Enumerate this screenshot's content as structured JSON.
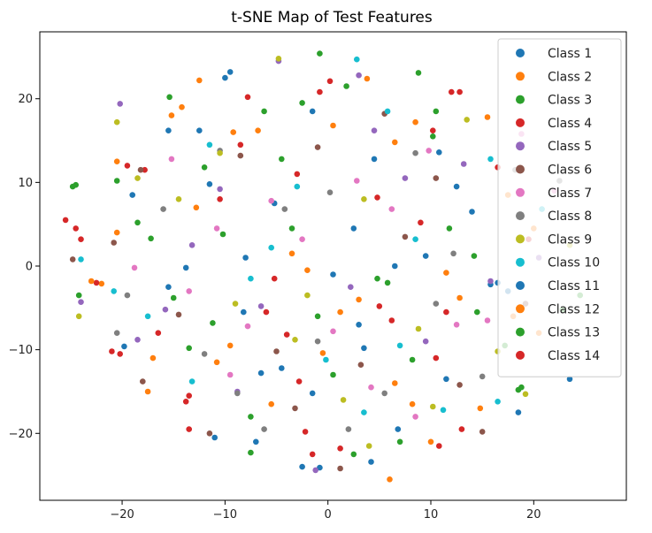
{
  "chart_data": {
    "type": "scatter",
    "title": "t-SNE Map of Test Features",
    "xlabel": "",
    "ylabel": "",
    "xlim": [
      -28,
      29
    ],
    "ylim": [
      -28,
      28
    ],
    "xticks": [
      -20,
      -10,
      0,
      10,
      20
    ],
    "yticks": [
      -20,
      -10,
      0,
      10,
      20
    ],
    "xtick_labels": [
      "−20",
      "−10",
      "0",
      "10",
      "20"
    ],
    "ytick_labels": [
      "−20",
      "−10",
      "0",
      "10",
      "20"
    ],
    "grid": false,
    "legend_position": "top-right",
    "series": [
      {
        "name": "Class 1",
        "color": "#1f77b4",
        "points": [
          [
            -9.5,
            23.2
          ],
          [
            -15.5,
            16.2
          ],
          [
            -11.5,
            9.8
          ],
          [
            -5.2,
            7.5
          ],
          [
            2.5,
            4.5
          ],
          [
            9.5,
            1.2
          ],
          [
            15.8,
            -2.2
          ],
          [
            -8.2,
            -5.5
          ],
          [
            3.5,
            -9.8
          ],
          [
            -1.5,
            -15.2
          ],
          [
            6.8,
            -19.5
          ],
          [
            -0.8,
            -24.1
          ],
          [
            18.5,
            -17.5
          ],
          [
            -13.8,
            -0.2
          ],
          [
            12.5,
            9.5
          ],
          [
            4.2,
            -23.4
          ],
          [
            -19.8,
            -9.6
          ],
          [
            23.5,
            -13.5
          ],
          [
            10.8,
            13.6
          ],
          [
            -4.5,
            -12.2
          ]
        ]
      },
      {
        "name": "Class 2",
        "color": "#ff7f0e",
        "points": [
          [
            -14.2,
            19.0
          ],
          [
            -20.5,
            12.5
          ],
          [
            6.5,
            14.8
          ],
          [
            -3.5,
            1.5
          ],
          [
            12.8,
            -3.8
          ],
          [
            -10.8,
            -11.5
          ],
          [
            1.2,
            -5.5
          ],
          [
            17.5,
            8.5
          ],
          [
            -6.8,
            16.2
          ],
          [
            8.2,
            -16.5
          ],
          [
            6.0,
            -25.5
          ],
          [
            -22.0,
            -2.1
          ],
          [
            15.5,
            17.8
          ],
          [
            -0.5,
            -10.4
          ],
          [
            20.5,
            -8.0
          ],
          [
            -12.5,
            22.2
          ],
          [
            3.8,
            22.4
          ],
          [
            -17.5,
            -15.0
          ]
        ]
      },
      {
        "name": "Class 3",
        "color": "#2ca02c",
        "points": [
          [
            -15.4,
            20.2
          ],
          [
            -0.8,
            25.4
          ],
          [
            8.8,
            23.1
          ],
          [
            -24.5,
            9.7
          ],
          [
            -20.5,
            10.2
          ],
          [
            10.5,
            18.5
          ],
          [
            -4.5,
            12.8
          ],
          [
            5.8,
            -2.0
          ],
          [
            -10.2,
            3.8
          ],
          [
            14.5,
            -5.5
          ],
          [
            0.5,
            -13.0
          ],
          [
            -7.5,
            -22.3
          ],
          [
            18.5,
            -14.8
          ],
          [
            -24.2,
            -3.5
          ],
          [
            22.8,
            -5.2
          ],
          [
            -13.5,
            -9.8
          ],
          [
            7.0,
            -21.0
          ],
          [
            -2.5,
            19.5
          ],
          [
            11.8,
            4.5
          ],
          [
            -17.2,
            3.3
          ]
        ]
      },
      {
        "name": "Class 4",
        "color": "#d62728",
        "points": [
          [
            -25.5,
            5.5
          ],
          [
            -24.0,
            3.2
          ],
          [
            -22.5,
            -2.0
          ],
          [
            -21.0,
            -10.2
          ],
          [
            12.8,
            20.8
          ],
          [
            0.2,
            22.1
          ],
          [
            -8.5,
            14.5
          ],
          [
            4.8,
            8.2
          ],
          [
            -5.2,
            -1.5
          ],
          [
            10.5,
            -11.0
          ],
          [
            -13.8,
            -16.2
          ],
          [
            1.2,
            -21.8
          ],
          [
            10.8,
            -21.5
          ],
          [
            -2.2,
            -19.8
          ],
          [
            19.5,
            3.2
          ],
          [
            -17.8,
            11.5
          ],
          [
            6.2,
            -6.5
          ],
          [
            -13.5,
            -19.5
          ],
          [
            16.5,
            11.8
          ],
          [
            -4.0,
            -8.2
          ]
        ]
      },
      {
        "name": "Class 5",
        "color": "#9467bd",
        "points": [
          [
            -20.2,
            19.4
          ],
          [
            -13.2,
            2.5
          ],
          [
            -4.8,
            24.5
          ],
          [
            3.0,
            22.8
          ],
          [
            7.5,
            10.5
          ],
          [
            13.2,
            12.2
          ],
          [
            -6.5,
            -4.8
          ],
          [
            2.2,
            -2.5
          ],
          [
            -15.8,
            -5.2
          ],
          [
            9.5,
            -9.0
          ],
          [
            -1.2,
            -24.4
          ],
          [
            -8.8,
            -15.0
          ],
          [
            15.8,
            -1.8
          ],
          [
            -18.5,
            -8.8
          ],
          [
            4.5,
            16.2
          ],
          [
            -10.5,
            9.2
          ],
          [
            20.5,
            1.0
          ],
          [
            -24.0,
            -4.3
          ]
        ]
      },
      {
        "name": "Class 6",
        "color": "#8c564b",
        "points": [
          [
            -18.2,
            11.5
          ],
          [
            -8.5,
            13.2
          ],
          [
            -1.0,
            14.2
          ],
          [
            5.5,
            18.2
          ],
          [
            10.5,
            10.5
          ],
          [
            -14.5,
            -5.8
          ],
          [
            -5.0,
            -10.2
          ],
          [
            3.2,
            -11.8
          ],
          [
            12.8,
            -14.2
          ],
          [
            -18.0,
            -13.8
          ],
          [
            1.2,
            -24.2
          ],
          [
            15.0,
            -19.8
          ],
          [
            -24.8,
            0.8
          ],
          [
            19.2,
            -4.5
          ],
          [
            -11.5,
            -20.0
          ],
          [
            7.5,
            3.5
          ],
          [
            -3.2,
            -17.0
          ],
          [
            -20.8,
            2.8
          ]
        ]
      },
      {
        "name": "Class 7",
        "color": "#e377c2",
        "points": [
          [
            -18.8,
            -0.2
          ],
          [
            -10.8,
            4.5
          ],
          [
            -5.5,
            7.8
          ],
          [
            2.8,
            10.2
          ],
          [
            6.2,
            6.8
          ],
          [
            12.5,
            -7.0
          ],
          [
            -13.5,
            -3.0
          ],
          [
            -7.8,
            -7.2
          ],
          [
            0.5,
            -7.8
          ],
          [
            4.2,
            -14.5
          ],
          [
            8.5,
            -18.0
          ],
          [
            15.5,
            -6.5
          ],
          [
            18.8,
            15.8
          ],
          [
            -2.5,
            3.2
          ],
          [
            9.8,
            13.8
          ],
          [
            -9.5,
            -13.0
          ],
          [
            22.0,
            9.0
          ],
          [
            -15.2,
            12.8
          ]
        ]
      },
      {
        "name": "Class 8",
        "color": "#7f7f7f",
        "points": [
          [
            -19.5,
            -3.5
          ],
          [
            -20.5,
            -8.0
          ],
          [
            -4.2,
            6.8
          ],
          [
            8.5,
            13.5
          ],
          [
            12.2,
            1.5
          ],
          [
            -8.8,
            -15.2
          ],
          [
            2.0,
            -19.5
          ],
          [
            -12.0,
            -10.5
          ],
          [
            -1.0,
            -9.0
          ],
          [
            18.2,
            11.5
          ],
          [
            5.5,
            -15.2
          ],
          [
            15.0,
            -13.2
          ],
          [
            22.5,
            10.2
          ],
          [
            -6.2,
            -19.5
          ],
          [
            -16.0,
            6.8
          ],
          [
            0.2,
            8.8
          ],
          [
            10.5,
            -4.5
          ],
          [
            -10.5,
            13.8
          ]
        ]
      },
      {
        "name": "Class 9",
        "color": "#bcbd22",
        "points": [
          [
            -20.5,
            17.2
          ],
          [
            -18.5,
            10.5
          ],
          [
            -10.5,
            13.5
          ],
          [
            -4.8,
            24.8
          ],
          [
            3.5,
            8.0
          ],
          [
            8.8,
            -7.5
          ],
          [
            13.5,
            17.5
          ],
          [
            16.5,
            -10.2
          ],
          [
            -14.5,
            8.0
          ],
          [
            -3.2,
            -8.8
          ],
          [
            4.0,
            -21.5
          ],
          [
            -2.0,
            -3.5
          ],
          [
            19.2,
            -15.3
          ],
          [
            -24.2,
            -6.0
          ],
          [
            10.2,
            -16.8
          ],
          [
            -9.0,
            -4.5
          ],
          [
            1.5,
            -16.0
          ],
          [
            23.5,
            2.5
          ]
        ]
      },
      {
        "name": "Class 10",
        "color": "#17becf",
        "points": [
          [
            -11.5,
            14.5
          ],
          [
            -17.5,
            -6.0
          ],
          [
            -7.5,
            -1.5
          ],
          [
            -5.5,
            2.2
          ],
          [
            2.8,
            24.7
          ],
          [
            5.8,
            18.5
          ],
          [
            8.5,
            3.2
          ],
          [
            15.8,
            12.8
          ],
          [
            -13.2,
            -13.8
          ],
          [
            -0.2,
            -11.2
          ],
          [
            3.5,
            -17.5
          ],
          [
            11.2,
            -17.2
          ],
          [
            16.5,
            -16.2
          ],
          [
            -20.8,
            -3.0
          ],
          [
            -24.0,
            0.8
          ],
          [
            20.8,
            6.8
          ],
          [
            -3.0,
            9.5
          ],
          [
            7.0,
            -9.5
          ]
        ]
      },
      {
        "name": "Class 11",
        "color": "#1f77b4",
        "points": [
          [
            -10.0,
            22.5
          ],
          [
            -12.5,
            16.2
          ],
          [
            -19.0,
            8.5
          ],
          [
            -1.5,
            18.5
          ],
          [
            4.5,
            12.8
          ],
          [
            -8.0,
            1.0
          ],
          [
            0.5,
            -1.0
          ],
          [
            6.5,
            0.0
          ],
          [
            14.0,
            6.5
          ],
          [
            16.5,
            -2.0
          ],
          [
            -15.5,
            -2.5
          ],
          [
            -6.5,
            -12.8
          ],
          [
            3.0,
            -7.0
          ],
          [
            -11.0,
            -20.5
          ],
          [
            -2.5,
            -24.0
          ],
          [
            11.5,
            -13.5
          ],
          [
            17.5,
            -3.0
          ],
          [
            -7.0,
            -21.0
          ]
        ]
      },
      {
        "name": "Class 12",
        "color": "#ff7f0e",
        "points": [
          [
            -15.2,
            18.0
          ],
          [
            -9.2,
            16.0
          ],
          [
            0.5,
            16.8
          ],
          [
            8.5,
            17.2
          ],
          [
            -20.5,
            4.0
          ],
          [
            -12.8,
            7.0
          ],
          [
            -2.0,
            -0.5
          ],
          [
            11.5,
            -0.8
          ],
          [
            -17.0,
            -11.0
          ],
          [
            -5.5,
            -16.5
          ],
          [
            6.5,
            -14.0
          ],
          [
            -23.0,
            -1.8
          ],
          [
            14.8,
            -17.0
          ],
          [
            20.0,
            4.5
          ],
          [
            -9.5,
            -9.5
          ],
          [
            3.0,
            -4.0
          ],
          [
            10.0,
            -21.0
          ],
          [
            18.0,
            -6.0
          ]
        ]
      },
      {
        "name": "Class 13",
        "color": "#2ca02c",
        "points": [
          [
            -18.5,
            5.2
          ],
          [
            -12.0,
            11.8
          ],
          [
            -6.2,
            18.5
          ],
          [
            1.8,
            21.5
          ],
          [
            10.2,
            15.5
          ],
          [
            -15.0,
            -3.8
          ],
          [
            -3.5,
            4.5
          ],
          [
            4.8,
            -1.5
          ],
          [
            14.2,
            1.2
          ],
          [
            -11.2,
            -6.8
          ],
          [
            -1.0,
            -6.0
          ],
          [
            8.2,
            -11.2
          ],
          [
            17.2,
            -9.5
          ],
          [
            -7.5,
            -18.0
          ],
          [
            2.5,
            -22.5
          ],
          [
            18.8,
            -14.5
          ],
          [
            24.5,
            -3.5
          ],
          [
            -24.8,
            9.5
          ]
        ]
      },
      {
        "name": "Class 14",
        "color": "#d62728",
        "points": [
          [
            -19.5,
            12.0
          ],
          [
            -7.8,
            20.2
          ],
          [
            -0.8,
            20.8
          ],
          [
            10.2,
            16.2
          ],
          [
            12.0,
            20.8
          ],
          [
            -10.5,
            8.0
          ],
          [
            -3.0,
            11.0
          ],
          [
            9.0,
            5.2
          ],
          [
            -16.5,
            -8.0
          ],
          [
            -6.0,
            -5.5
          ],
          [
            5.0,
            -4.8
          ],
          [
            11.5,
            -5.5
          ],
          [
            -13.5,
            -15.5
          ],
          [
            -2.8,
            -13.8
          ],
          [
            -1.5,
            -22.5
          ],
          [
            13.0,
            -19.5
          ],
          [
            -24.5,
            4.5
          ],
          [
            -20.2,
            -10.5
          ]
        ]
      }
    ]
  }
}
